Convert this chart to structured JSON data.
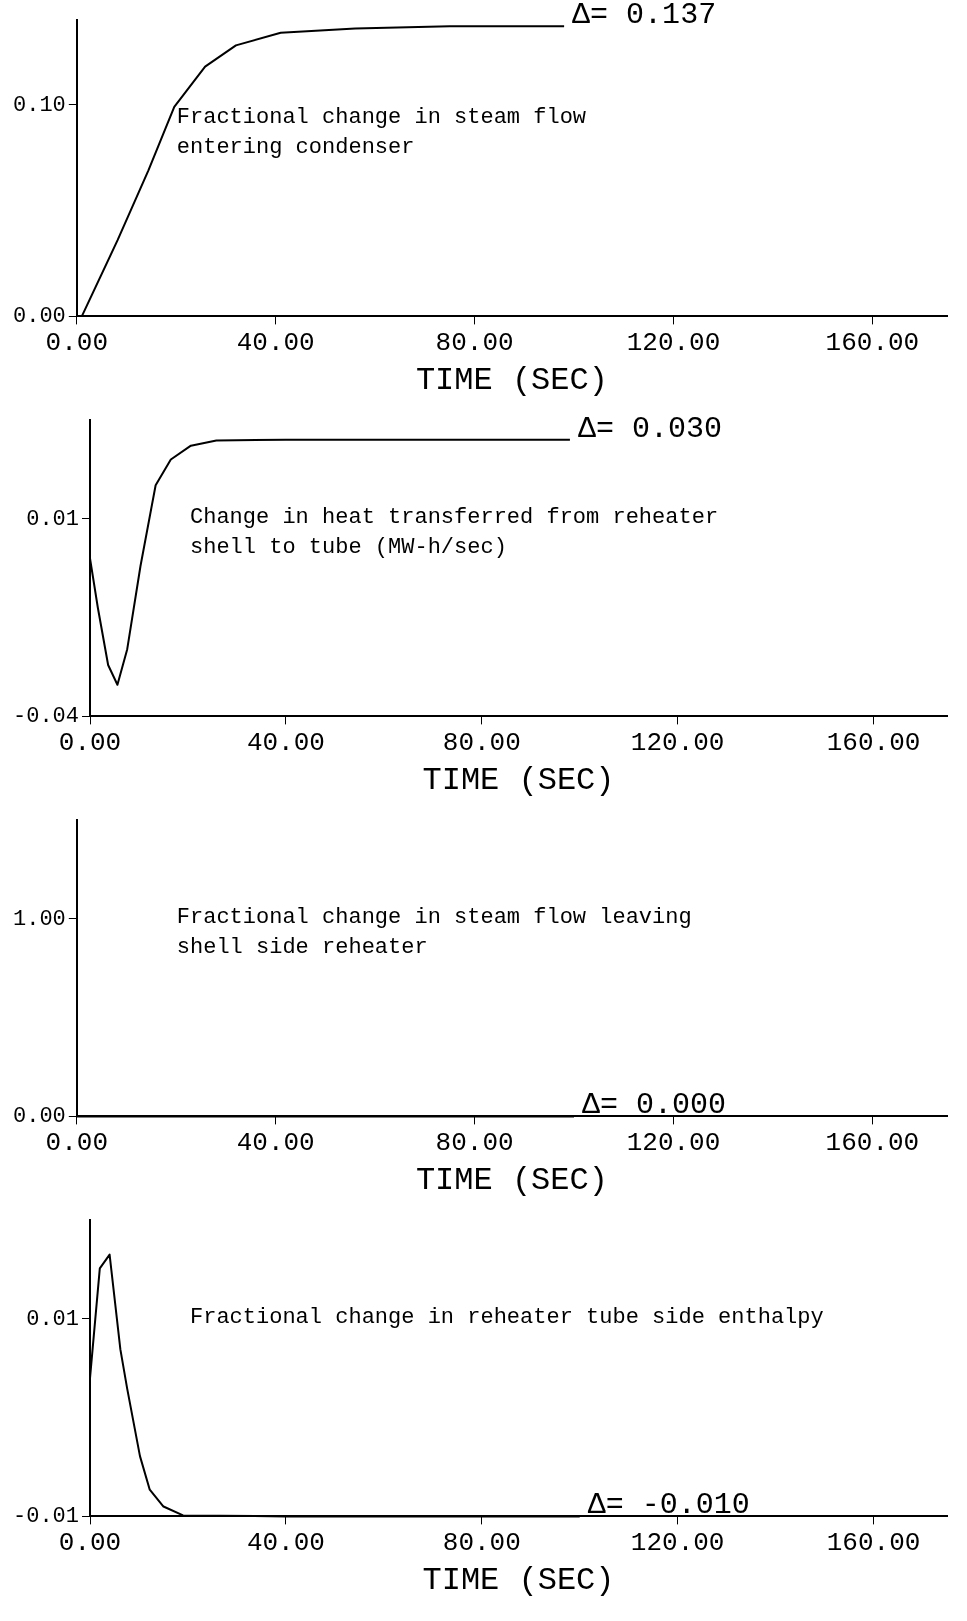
{
  "chart_data": [
    {
      "type": "line",
      "xlabel": "TIME (SEC)",
      "x": [
        1,
        8.2,
        14.4,
        19.6,
        25.8,
        32,
        41,
        56,
        75,
        98
      ],
      "series": [
        {
          "color": "#000000",
          "values": [
            0,
            0.036,
            0.069,
            0.099,
            0.118,
            0.128,
            0.134,
            0.136,
            0.137,
            0.137
          ]
        }
      ],
      "xlim": [
        0,
        175
      ],
      "xticks": [
        {
          "value": 0,
          "label": "0.00"
        },
        {
          "value": 40,
          "label": "40.00"
        },
        {
          "value": 80,
          "label": "80.00"
        },
        {
          "value": 120,
          "label": "120.00"
        },
        {
          "value": 160,
          "label": "160.00"
        }
      ],
      "ylim": [
        0,
        0.14
      ],
      "yticks": [
        {
          "value": 0,
          "label": "0.00"
        },
        {
          "value": 0.1,
          "label": "0.10"
        }
      ],
      "annotations": [
        "Δ= 0.137",
        "Fractional change in steam flow\nentering condenser"
      ]
    },
    {
      "type": "line",
      "xlabel": "TIME (SEC)",
      "x": [
        0,
        1.6,
        3.7,
        5.6,
        7.6,
        10.3,
        13.4,
        16.5,
        20.6,
        25.8,
        40,
        98
      ],
      "series": [
        {
          "color": "#000000",
          "values": [
            0,
            -0.0125,
            -0.027,
            -0.032,
            -0.023,
            -0.002,
            0.0185,
            0.025,
            0.0285,
            0.0298,
            0.03,
            0.03
          ]
        }
      ],
      "xlim": [
        0,
        175
      ],
      "xticks": [
        {
          "value": 0,
          "label": "0.00"
        },
        {
          "value": 40,
          "label": "40.00"
        },
        {
          "value": 80,
          "label": "80.00"
        },
        {
          "value": 120,
          "label": "120.00"
        },
        {
          "value": 160,
          "label": "160.00"
        }
      ],
      "ylim": [
        -0.04,
        0.035
      ],
      "yticks": [
        {
          "value": -0.04,
          "label": "-0.04"
        },
        {
          "value": 0.01,
          "label": "0.01"
        }
      ],
      "annotations": [
        "Δ= 0.030",
        "Change in heat transferred from reheater\nshell to tube (MW-h/sec)"
      ]
    },
    {
      "type": "line",
      "xlabel": "TIME (SEC)",
      "x": [
        0,
        100
      ],
      "series": [
        {
          "color": "#000000",
          "values": [
            0,
            0
          ]
        }
      ],
      "xlim": [
        0,
        175
      ],
      "xticks": [
        {
          "value": 0,
          "label": "0.00"
        },
        {
          "value": 40,
          "label": "40.00"
        },
        {
          "value": 80,
          "label": "80.00"
        },
        {
          "value": 120,
          "label": "120.00"
        },
        {
          "value": 160,
          "label": "160.00"
        }
      ],
      "ylim": [
        0,
        1.5
      ],
      "yticks": [
        {
          "value": 0,
          "label": "0.00"
        },
        {
          "value": 1,
          "label": "1.00"
        }
      ],
      "annotations": [
        "Δ= 0.000",
        "Fractional change in steam flow leaving\nshell side reheater"
      ]
    },
    {
      "type": "line",
      "xlabel": "TIME (SEC)",
      "x": [
        0,
        2,
        4,
        6.2,
        7.6,
        10.2,
        12.2,
        15,
        19,
        40,
        100
      ],
      "series": [
        {
          "color": "#000000",
          "values": [
            0.004,
            0.0151,
            0.0165,
            0.0069,
            0.0029,
            -0.0039,
            -0.0073,
            -0.009,
            -0.0099,
            -0.01,
            -0.01
          ]
        }
      ],
      "xlim": [
        0,
        175
      ],
      "xticks": [
        {
          "value": 0,
          "label": "0.00"
        },
        {
          "value": 40,
          "label": "40.00"
        },
        {
          "value": 80,
          "label": "80.00"
        },
        {
          "value": 120,
          "label": "120.00"
        },
        {
          "value": 160,
          "label": "160.00"
        }
      ],
      "ylim": [
        -0.01,
        0.02
      ],
      "yticks": [
        {
          "value": -0.01,
          "label": "-0.01"
        },
        {
          "value": 0.01,
          "label": "0.01"
        }
      ],
      "annotations": [
        "Δ= -0.010",
        "Fractional change in reheater tube side enthalpy"
      ]
    }
  ]
}
